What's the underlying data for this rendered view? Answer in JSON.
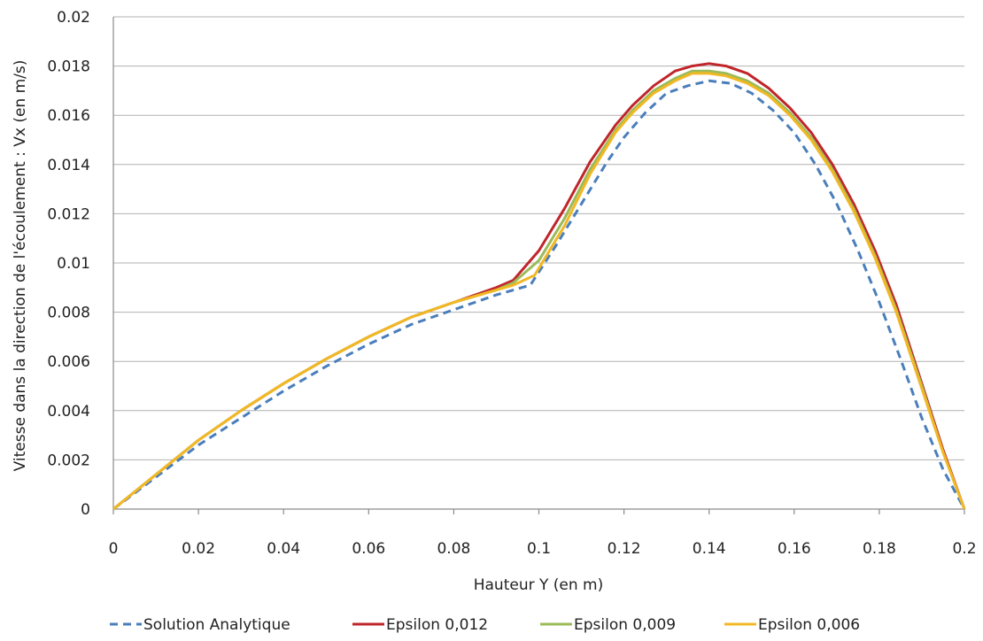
{
  "chart_data": {
    "type": "line",
    "title": "",
    "xlabel": "Hauteur Y (en m)",
    "ylabel": "Vitesse dans la direction de l'écoulement : Vx (en m/s)",
    "xlim": [
      0,
      0.2
    ],
    "ylim": [
      0,
      0.02
    ],
    "xticks": [
      0,
      0.02,
      0.04,
      0.06,
      0.08,
      0.1,
      0.12,
      0.14,
      0.16,
      0.18,
      0.2
    ],
    "yticks": [
      0,
      0.002,
      0.004,
      0.006,
      0.008,
      0.01,
      0.012,
      0.014,
      0.016,
      0.018,
      0.02
    ],
    "xtick_labels": [
      "0",
      "0.02",
      "0.04",
      "0.06",
      "0.08",
      "0.1",
      "0.12",
      "0.14",
      "0.16",
      "0.18",
      "0.2"
    ],
    "ytick_labels": [
      "0",
      "0.002",
      "0.004",
      "0.006",
      "0.008",
      "0.01",
      "0.012",
      "0.014",
      "0.016",
      "0.018",
      "0.02"
    ],
    "grid": "horizontal",
    "legend_position": "bottom",
    "series": [
      {
        "name": "Solution Analytique",
        "color": "#4a7ebb",
        "style": "dashed",
        "x": [
          0,
          0.01,
          0.02,
          0.03,
          0.04,
          0.05,
          0.06,
          0.07,
          0.08,
          0.09,
          0.098,
          0.104,
          0.11,
          0.116,
          0.12,
          0.125,
          0.13,
          0.135,
          0.14,
          0.145,
          0.15,
          0.155,
          0.16,
          0.165,
          0.17,
          0.175,
          0.18,
          0.185,
          0.19,
          0.195,
          0.2
        ],
        "y": [
          0,
          0.0013,
          0.0026,
          0.0037,
          0.0048,
          0.0058,
          0.0067,
          0.0075,
          0.0081,
          0.0087,
          0.0091,
          0.0107,
          0.0124,
          0.0141,
          0.0151,
          0.0161,
          0.0169,
          0.0172,
          0.0174,
          0.0173,
          0.0169,
          0.0162,
          0.0153,
          0.014,
          0.0124,
          0.0105,
          0.0084,
          0.0061,
          0.0037,
          0.0016,
          0
        ]
      },
      {
        "name": "Epsilon 0,012",
        "color": "#c0252a",
        "style": "solid",
        "x": [
          0,
          0.01,
          0.02,
          0.03,
          0.04,
          0.05,
          0.06,
          0.07,
          0.08,
          0.09,
          0.094,
          0.1,
          0.106,
          0.112,
          0.118,
          0.122,
          0.127,
          0.132,
          0.136,
          0.14,
          0.144,
          0.149,
          0.154,
          0.159,
          0.164,
          0.169,
          0.174,
          0.179,
          0.184,
          0.19,
          0.195,
          0.2
        ],
        "y": [
          0,
          0.0014,
          0.0028,
          0.004,
          0.0051,
          0.0061,
          0.007,
          0.0078,
          0.0084,
          0.009,
          0.0093,
          0.0105,
          0.0122,
          0.0141,
          0.0156,
          0.0164,
          0.0172,
          0.0178,
          0.018,
          0.0181,
          0.018,
          0.0177,
          0.0171,
          0.0163,
          0.0153,
          0.014,
          0.0124,
          0.0105,
          0.0083,
          0.0051,
          0.0024,
          0
        ]
      },
      {
        "name": "Epsilon 0,009",
        "color": "#9bbb59",
        "style": "solid",
        "x": [
          0,
          0.01,
          0.02,
          0.03,
          0.04,
          0.05,
          0.06,
          0.07,
          0.08,
          0.09,
          0.094,
          0.1,
          0.106,
          0.112,
          0.118,
          0.122,
          0.127,
          0.132,
          0.136,
          0.14,
          0.144,
          0.149,
          0.154,
          0.159,
          0.164,
          0.169,
          0.174,
          0.179,
          0.184,
          0.19,
          0.195,
          0.2
        ],
        "y": [
          0,
          0.0014,
          0.0028,
          0.004,
          0.0051,
          0.0061,
          0.007,
          0.0078,
          0.0084,
          0.0089,
          0.0092,
          0.0101,
          0.0118,
          0.0138,
          0.0154,
          0.0162,
          0.017,
          0.0175,
          0.0178,
          0.0178,
          0.0177,
          0.0174,
          0.0169,
          0.0161,
          0.0151,
          0.0138,
          0.0122,
          0.0103,
          0.0081,
          0.005,
          0.0023,
          0
        ]
      },
      {
        "name": "Epsilon 0,006",
        "color": "#f2b824",
        "style": "solid",
        "x": [
          0,
          0.01,
          0.02,
          0.03,
          0.04,
          0.05,
          0.06,
          0.07,
          0.08,
          0.09,
          0.094,
          0.099,
          0.106,
          0.112,
          0.118,
          0.122,
          0.127,
          0.132,
          0.136,
          0.14,
          0.144,
          0.149,
          0.154,
          0.159,
          0.164,
          0.169,
          0.174,
          0.179,
          0.184,
          0.19,
          0.195,
          0.2
        ],
        "y": [
          0,
          0.0014,
          0.0028,
          0.004,
          0.0051,
          0.0061,
          0.007,
          0.0078,
          0.0084,
          0.0089,
          0.0091,
          0.0095,
          0.0115,
          0.0136,
          0.0153,
          0.0161,
          0.0169,
          0.0174,
          0.0177,
          0.0177,
          0.0176,
          0.0173,
          0.0168,
          0.016,
          0.015,
          0.0137,
          0.0121,
          0.0102,
          0.008,
          0.0049,
          0.0023,
          0
        ]
      }
    ]
  }
}
